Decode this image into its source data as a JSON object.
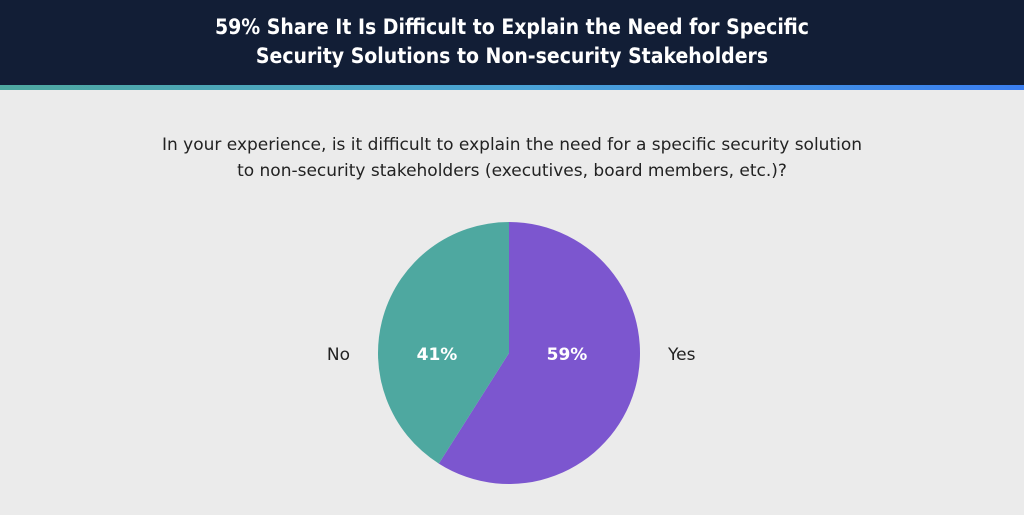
{
  "header": {
    "title_line1": "59% Share It Is Difficult to Explain the Need for Specific",
    "title_line2": "Security Solutions to Non-security Stakeholders"
  },
  "question": {
    "line1": "In your experience, is it difficult to explain the need for a specific security solution",
    "line2": "to non-security stakeholders (executives, board members, etc.)?"
  },
  "chart_data": {
    "type": "pie",
    "categories": [
      "Yes",
      "No"
    ],
    "values": [
      59,
      41
    ],
    "data_labels": [
      "59%",
      "41%"
    ],
    "colors": [
      "#7c56cf",
      "#4ea8a0"
    ]
  }
}
